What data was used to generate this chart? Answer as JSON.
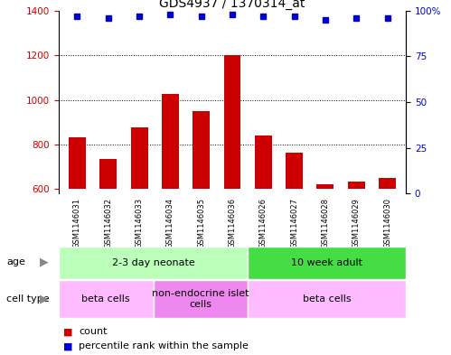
{
  "title": "GDS4937 / 1370314_at",
  "samples": [
    "GSM1146031",
    "GSM1146032",
    "GSM1146033",
    "GSM1146034",
    "GSM1146035",
    "GSM1146036",
    "GSM1146026",
    "GSM1146027",
    "GSM1146028",
    "GSM1146029",
    "GSM1146030"
  ],
  "counts": [
    830,
    735,
    878,
    1028,
    950,
    1200,
    840,
    762,
    622,
    635,
    648
  ],
  "percentile_ranks": [
    97,
    96,
    97,
    98,
    97,
    98,
    97,
    97,
    95,
    96,
    96
  ],
  "ylim_left": [
    580,
    1400
  ],
  "ylim_right": [
    0,
    100
  ],
  "yticks_left": [
    600,
    800,
    1000,
    1200,
    1400
  ],
  "yticks_right": [
    0,
    25,
    50,
    75,
    100
  ],
  "bar_color": "#cc0000",
  "dot_color": "#0000cc",
  "grid_color": "#000000",
  "age_groups": [
    {
      "label": "2-3 day neonate",
      "start": 0,
      "end": 6,
      "color": "#bbffbb"
    },
    {
      "label": "10 week adult",
      "start": 6,
      "end": 11,
      "color": "#44dd44"
    }
  ],
  "cell_type_groups": [
    {
      "label": "beta cells",
      "start": 0,
      "end": 3,
      "color": "#ffbbff"
    },
    {
      "label": "non-endocrine islet\ncells",
      "start": 3,
      "end": 6,
      "color": "#ee88ee"
    },
    {
      "label": "beta cells",
      "start": 6,
      "end": 11,
      "color": "#ffbbff"
    }
  ],
  "legend_items": [
    {
      "label": "count",
      "color": "#cc0000",
      "marker": "s"
    },
    {
      "label": "percentile rank within the sample",
      "color": "#0000cc",
      "marker": "s"
    }
  ],
  "title_fontsize": 10,
  "tick_fontsize": 7.5,
  "label_fontsize": 8,
  "sample_label_fontsize": 6,
  "annotation_fontsize": 8
}
